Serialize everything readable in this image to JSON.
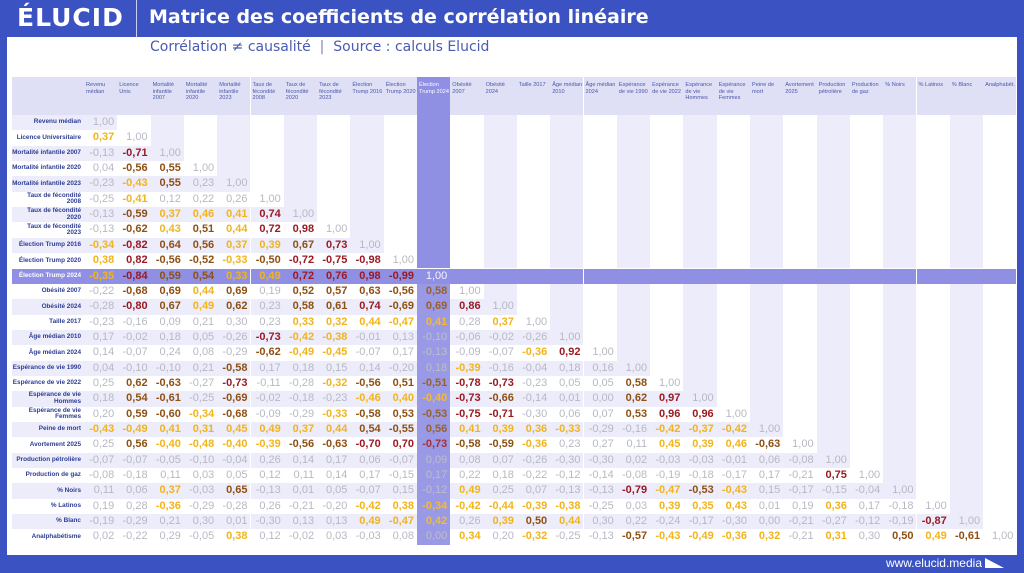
{
  "header": {
    "logo": "ÉLUCID",
    "title": "Matrice des coefficients de corrélation linéaire"
  },
  "subtitle": {
    "note": "Corrélation ≠ causalité",
    "separator": "|",
    "source": "Source : calculs Elucid"
  },
  "footer": {
    "url": "www.elucid.media"
  },
  "colors": {
    "frame": "#3b52c2",
    "highlight": "#8f8fe3",
    "weak": "#b8b8c4",
    "moderate": "#f2b41c",
    "strong": "#8f5013",
    "very_strong": "#9b1a22"
  },
  "chart_data": {
    "type": "heatmap",
    "title": "Matrice des coefficients de corrélation linéaire",
    "highlight": "Élection Trump 2024",
    "columns": [
      "Revenu médian",
      "Licence Univ.",
      "Mortalité infantile 2007",
      "Mortalité infantile 2020",
      "Mortalité infantile 2023",
      "Taux de fécondité 2008",
      "Taux de fécondité 2020",
      "Taux de fécondité 2023",
      "Élection Trump 2016",
      "Élection Trump 2020",
      "Élection Trump 2024",
      "Obésité 2007",
      "Obésité 2024",
      "Taille 2017",
      "Âge médian 2010",
      "Âge médian 2024",
      "Espérance de vie 1990",
      "Espérance de vie 2022",
      "Espérance de vie Hommes",
      "Espérance de vie Femmes",
      "Peine de mort",
      "Avortement 2025",
      "Production pétrolière",
      "Production de gaz",
      "% Noirs",
      "% Latinos",
      "% Blanc",
      "Analphabét."
    ],
    "rows": [
      {
        "label": "Revenu médian",
        "values": [
          "1,00"
        ]
      },
      {
        "label": "Licence Universitaire",
        "values": [
          "0,37",
          "1,00"
        ]
      },
      {
        "label": "Mortalité infantile 2007",
        "values": [
          "-0,13",
          "-0,71",
          "1,00"
        ]
      },
      {
        "label": "Mortalité infantile 2020",
        "values": [
          "0,04",
          "-0,56",
          "0,55",
          "1,00"
        ]
      },
      {
        "label": "Mortalité infantile 2023",
        "values": [
          "-0,23",
          "-0,43",
          "0,55",
          "0,23",
          "1,00"
        ]
      },
      {
        "label": "Taux de fécondité 2008",
        "values": [
          "-0,25",
          "-0,41",
          "0,12",
          "0,22",
          "0,26",
          "1,00"
        ]
      },
      {
        "label": "Taux de fécondité 2020",
        "values": [
          "-0,13",
          "-0,59",
          "0,37",
          "0,46",
          "0,41",
          "0,74",
          "1,00"
        ]
      },
      {
        "label": "Taux de fécondité 2023",
        "values": [
          "-0,13",
          "-0,62",
          "0,43",
          "0,51",
          "0,44",
          "0,72",
          "0,98",
          "1,00"
        ]
      },
      {
        "label": "Élection Trump 2016",
        "values": [
          "-0,34",
          "-0,82",
          "0,64",
          "0,56",
          "0,37",
          "0,39",
          "0,67",
          "0,73",
          "1,00"
        ]
      },
      {
        "label": "Élection Trump 2020",
        "values": [
          "0,38",
          "0,82",
          "-0,56",
          "-0,52",
          "-0,33",
          "-0,50",
          "-0,72",
          "-0,75",
          "-0,98",
          "1,00"
        ]
      },
      {
        "label": "Élection Trump 2024",
        "values": [
          "-0,35",
          "-0,84",
          "0,59",
          "0,54",
          "0,33",
          "0,49",
          "0,72",
          "0,76",
          "0,98",
          "-0,99",
          "1,00"
        ]
      },
      {
        "label": "Obésité 2007",
        "values": [
          "-0,22",
          "-0,68",
          "0,69",
          "0,44",
          "0,69",
          "0,19",
          "0,52",
          "0,57",
          "0,63",
          "-0,56",
          "0,58",
          "1,00"
        ]
      },
      {
        "label": "Obésité 2024",
        "values": [
          "-0,28",
          "-0,80",
          "0,67",
          "0,49",
          "0,62",
          "0,23",
          "0,58",
          "0,61",
          "0,74",
          "-0,69",
          "0,69",
          "0,86",
          "1,00"
        ]
      },
      {
        "label": "Taille 2017",
        "values": [
          "-0,23",
          "-0,16",
          "0,09",
          "0,21",
          "0,30",
          "0,23",
          "0,33",
          "0,32",
          "0,44",
          "-0,47",
          "0,41",
          "0,28",
          "0,37",
          "1,00"
        ]
      },
      {
        "label": "Âge médian 2010",
        "values": [
          "0,17",
          "-0,02",
          "0,18",
          "0,05",
          "-0,26",
          "-0,73",
          "-0,42",
          "-0,38",
          "-0,01",
          "0,13",
          "-0,10",
          "-0,06",
          "-0,02",
          "-0,26",
          "1,00"
        ]
      },
      {
        "label": "Âge médian 2024",
        "values": [
          "0,14",
          "-0,07",
          "0,24",
          "0,08",
          "-0,29",
          "-0,62",
          "-0,49",
          "-0,45",
          "-0,07",
          "0,17",
          "-0,13",
          "-0,09",
          "-0,07",
          "-0,36",
          "0,92",
          "1,00"
        ]
      },
      {
        "label": "Espérance de vie 1990",
        "values": [
          "0,04",
          "-0,10",
          "-0,10",
          "0,21",
          "-0,58",
          "0,17",
          "0,18",
          "0,15",
          "0,14",
          "-0,20",
          "0,18",
          "-0,39",
          "-0,16",
          "-0,04",
          "0,18",
          "0,16",
          "1,00"
        ]
      },
      {
        "label": "Espérance de vie 2022",
        "values": [
          "0,25",
          "0,62",
          "-0,63",
          "-0,27",
          "-0,73",
          "-0,11",
          "-0,28",
          "-0,32",
          "-0,56",
          "0,51",
          "-0,51",
          "-0,78",
          "-0,73",
          "-0,23",
          "0,05",
          "0,05",
          "0,58",
          "1,00"
        ]
      },
      {
        "label": "Espérance de vie Hommes",
        "values": [
          "0,18",
          "0,54",
          "-0,61",
          "-0,25",
          "-0,69",
          "-0,02",
          "-0,18",
          "-0,23",
          "-0,46",
          "0,40",
          "-0,40",
          "-0,73",
          "-0,66",
          "-0,14",
          "0,01",
          "0,00",
          "0,62",
          "0,97",
          "1,00"
        ]
      },
      {
        "label": "Espérance de vie Femmes",
        "values": [
          "0,20",
          "0,59",
          "-0,60",
          "-0,34",
          "-0,68",
          "-0,09",
          "-0,29",
          "-0,33",
          "-0,58",
          "0,53",
          "-0,53",
          "-0,75",
          "-0,71",
          "-0,30",
          "0,06",
          "0,07",
          "0,53",
          "0,96",
          "0,96",
          "1,00"
        ]
      },
      {
        "label": "Peine de mort",
        "values": [
          "-0,43",
          "-0,49",
          "0,41",
          "0,31",
          "0,45",
          "0,49",
          "0,37",
          "0,44",
          "0,54",
          "-0,55",
          "0,56",
          "0,41",
          "0,39",
          "0,36",
          "-0,33",
          "-0,29",
          "-0,16",
          "-0,42",
          "-0,37",
          "-0,42",
          "1,00"
        ]
      },
      {
        "label": "Avortement 2025",
        "values": [
          "0,25",
          "0,56",
          "-0,40",
          "-0,48",
          "-0,40",
          "-0,39",
          "-0,56",
          "-0,63",
          "-0,70",
          "0,70",
          "-0,73",
          "-0,58",
          "-0,59",
          "-0,36",
          "0,23",
          "0,27",
          "0,11",
          "0,45",
          "0,39",
          "0,46",
          "-0,63",
          "1,00"
        ]
      },
      {
        "label": "Production pétrolière",
        "values": [
          "-0,07",
          "-0,07",
          "-0,05",
          "-0,10",
          "-0,04",
          "0,26",
          "0,14",
          "0,17",
          "0,06",
          "-0,07",
          "0,09",
          "0,08",
          "0,07",
          "-0,26",
          "-0,30",
          "-0,30",
          "0,02",
          "-0,03",
          "-0,03",
          "-0,01",
          "0,06",
          "-0,08",
          "1,00"
        ]
      },
      {
        "label": "Production de gaz",
        "values": [
          "-0,08",
          "-0,18",
          "0,11",
          "0,03",
          "0,05",
          "0,12",
          "0,11",
          "0,14",
          "0,17",
          "-0,15",
          "0,17",
          "0,22",
          "0,18",
          "-0,22",
          "-0,12",
          "-0,14",
          "-0,08",
          "-0,19",
          "-0,18",
          "-0,17",
          "0,17",
          "-0,21",
          "0,75",
          "1,00"
        ]
      },
      {
        "label": "% Noirs",
        "values": [
          "0,11",
          "0,06",
          "0,37",
          "-0,03",
          "0,65",
          "-0,13",
          "0,01",
          "0,05",
          "-0,07",
          "0,15",
          "-0,12",
          "0,49",
          "0,25",
          "0,07",
          "-0,13",
          "-0,13",
          "-0,79",
          "-0,47",
          "-0,53",
          "-0,43",
          "0,15",
          "-0,17",
          "-0,15",
          "-0,04",
          "1,00"
        ]
      },
      {
        "label": "% Latinos",
        "values": [
          "0,19",
          "0,28",
          "-0,36",
          "-0,29",
          "-0,28",
          "0,26",
          "-0,21",
          "-0,20",
          "-0,42",
          "0,38",
          "-0,34",
          "-0,42",
          "-0,44",
          "-0,39",
          "-0,38",
          "-0,25",
          "0,03",
          "0,39",
          "0,35",
          "0,43",
          "0,01",
          "0,19",
          "0,36",
          "0,17",
          "-0,18",
          "1,00"
        ]
      },
      {
        "label": "% Blanc",
        "values": [
          "-0,19",
          "-0,29",
          "0,21",
          "0,30",
          "0,01",
          "-0,30",
          "0,13",
          "0,13",
          "0,49",
          "-0,47",
          "0,42",
          "0,26",
          "0,39",
          "0,50",
          "0,44",
          "0,30",
          "0,22",
          "-0,24",
          "-0,17",
          "-0,30",
          "0,00",
          "-0,21",
          "-0,27",
          "-0,12",
          "-0,19",
          "-0,87",
          "1,00"
        ]
      },
      {
        "label": "Analphabétisme",
        "values": [
          "0,02",
          "-0,22",
          "0,29",
          "-0,05",
          "0,38",
          "0,12",
          "-0,02",
          "0,03",
          "-0,03",
          "0,08",
          "0,00",
          "0,34",
          "0,20",
          "-0,32",
          "-0,25",
          "-0,13",
          "-0,57",
          "-0,43",
          "-0,49",
          "-0,36",
          "0,32",
          "-0,21",
          "0,31",
          "0,30",
          "0,50",
          "0,49",
          "-0,61",
          "1,00"
        ]
      }
    ]
  }
}
